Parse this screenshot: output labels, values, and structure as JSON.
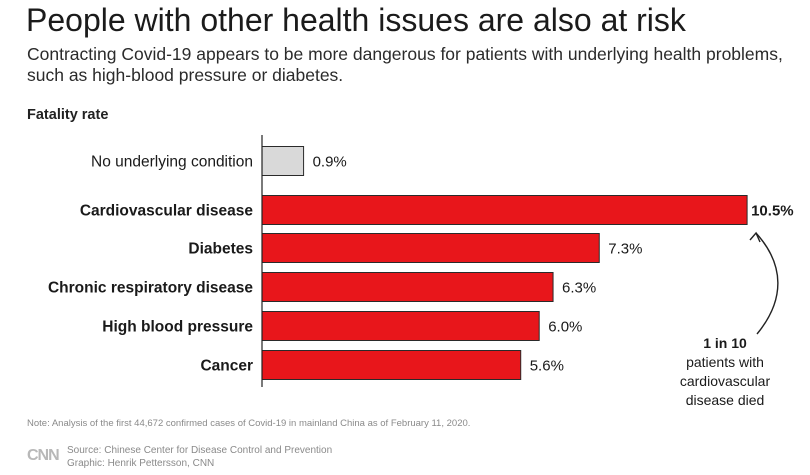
{
  "title": "People with other health issues are also at risk",
  "subtitle": "Contracting Covid-19 appears to be more dangerous for patients with underlying health problems, such as high-blood pressure or diabetes.",
  "axis_title": "Fatality rate",
  "annotation": {
    "line1": "1 in 10",
    "line2": "patients with",
    "line3": "cardiovascular",
    "line4": "disease died"
  },
  "note": "Note: Analysis of the first 44,672 confirmed cases of Covid-19 in mainland China as of February 11, 2020.",
  "logo": "CNN",
  "source": "Source: Chinese Center for Disease Control and Prevention",
  "graphic": "Graphic: Henrik Pettersson, CNN",
  "colors": {
    "highlight": "#e8161b",
    "baseline": "#d9d9d9",
    "axis": "#222222"
  },
  "chart_data": {
    "type": "bar",
    "orientation": "horizontal",
    "categories": [
      "No underlying condition",
      "Cardiovascular disease",
      "Diabetes",
      "Chronic respiratory disease",
      "High blood pressure",
      "Cancer"
    ],
    "values": [
      0.9,
      10.5,
      7.3,
      6.3,
      6.0,
      5.6
    ],
    "value_labels": [
      "0.9%",
      "10.5%",
      "7.3%",
      "6.3%",
      "6.0%",
      "5.6%"
    ],
    "xlim": [
      0,
      10.5
    ],
    "grid": false
  }
}
